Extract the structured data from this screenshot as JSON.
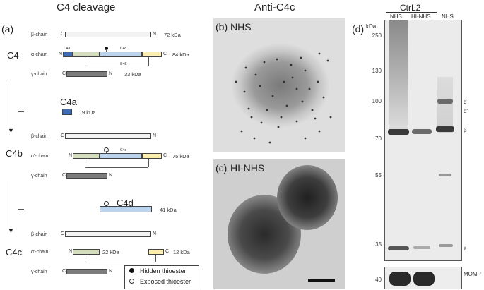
{
  "headers": {
    "left": "C4 cleavage",
    "middle": "Anti-C4c"
  },
  "panels": {
    "a": "(a)",
    "b": "(b)",
    "c": "(c)",
    "d": "(d)"
  },
  "micrographs": {
    "b_label": "NHS",
    "c_label": "HI-NHS"
  },
  "schematic": {
    "c4": {
      "name": "C4",
      "beta": {
        "label": "β-chain",
        "kda": "72 kDa",
        "n": "N",
        "c": "C"
      },
      "alpha": {
        "label": "α-chain",
        "kda": "84 kDa",
        "n": "N",
        "c": "C",
        "seg1": "C4a",
        "seg2": "C4d"
      },
      "gamma": {
        "label": "γ-chain",
        "kda": "33 kDa",
        "n": "N",
        "c": "C"
      },
      "ss": "S=S"
    },
    "c4a": {
      "name": "C4a",
      "kda": "9 kDa"
    },
    "c4b": {
      "name": "C4b",
      "beta": {
        "label": "β-chain",
        "kda": "",
        "n": "N",
        "c": "C"
      },
      "alpha": {
        "label": "α'-chain",
        "kda": "75 kDa",
        "n": "N",
        "c": "C",
        "seg2": "C4d"
      },
      "gamma": {
        "label": "γ-chain",
        "n": "N",
        "c": "C"
      }
    },
    "c4d": {
      "name": "C4d",
      "kda": "41 kDa"
    },
    "c4c": {
      "name": "C4c",
      "beta": {
        "label": "β-chain",
        "n": "N",
        "c": "C"
      },
      "alpha": {
        "label": "α'-chain",
        "kda1": "22 kDa",
        "kda2": "12 kDa",
        "n": "N",
        "c": "C"
      },
      "gamma": {
        "label": "γ-chain",
        "n": "N",
        "c": "C"
      }
    },
    "legend": {
      "hidden": "Hidden thioester",
      "exposed": "Exposed thioester"
    }
  },
  "blot": {
    "group": "CtrL2",
    "lanes": [
      "NHS",
      "HI-NHS",
      "NHS"
    ],
    "unit": "kDa",
    "markers": [
      "250",
      "130",
      "100",
      "70",
      "55",
      "35",
      "40"
    ],
    "bands": [
      "α",
      "α'",
      "β",
      "γ"
    ],
    "momp": "MOMP"
  },
  "colors": {
    "alpha_blue": "#bcd3ee",
    "c4a_green": "#d3dcbc",
    "c4c_yellow": "#fbeeb0",
    "c4a_darkblue": "#3d6bb5"
  }
}
